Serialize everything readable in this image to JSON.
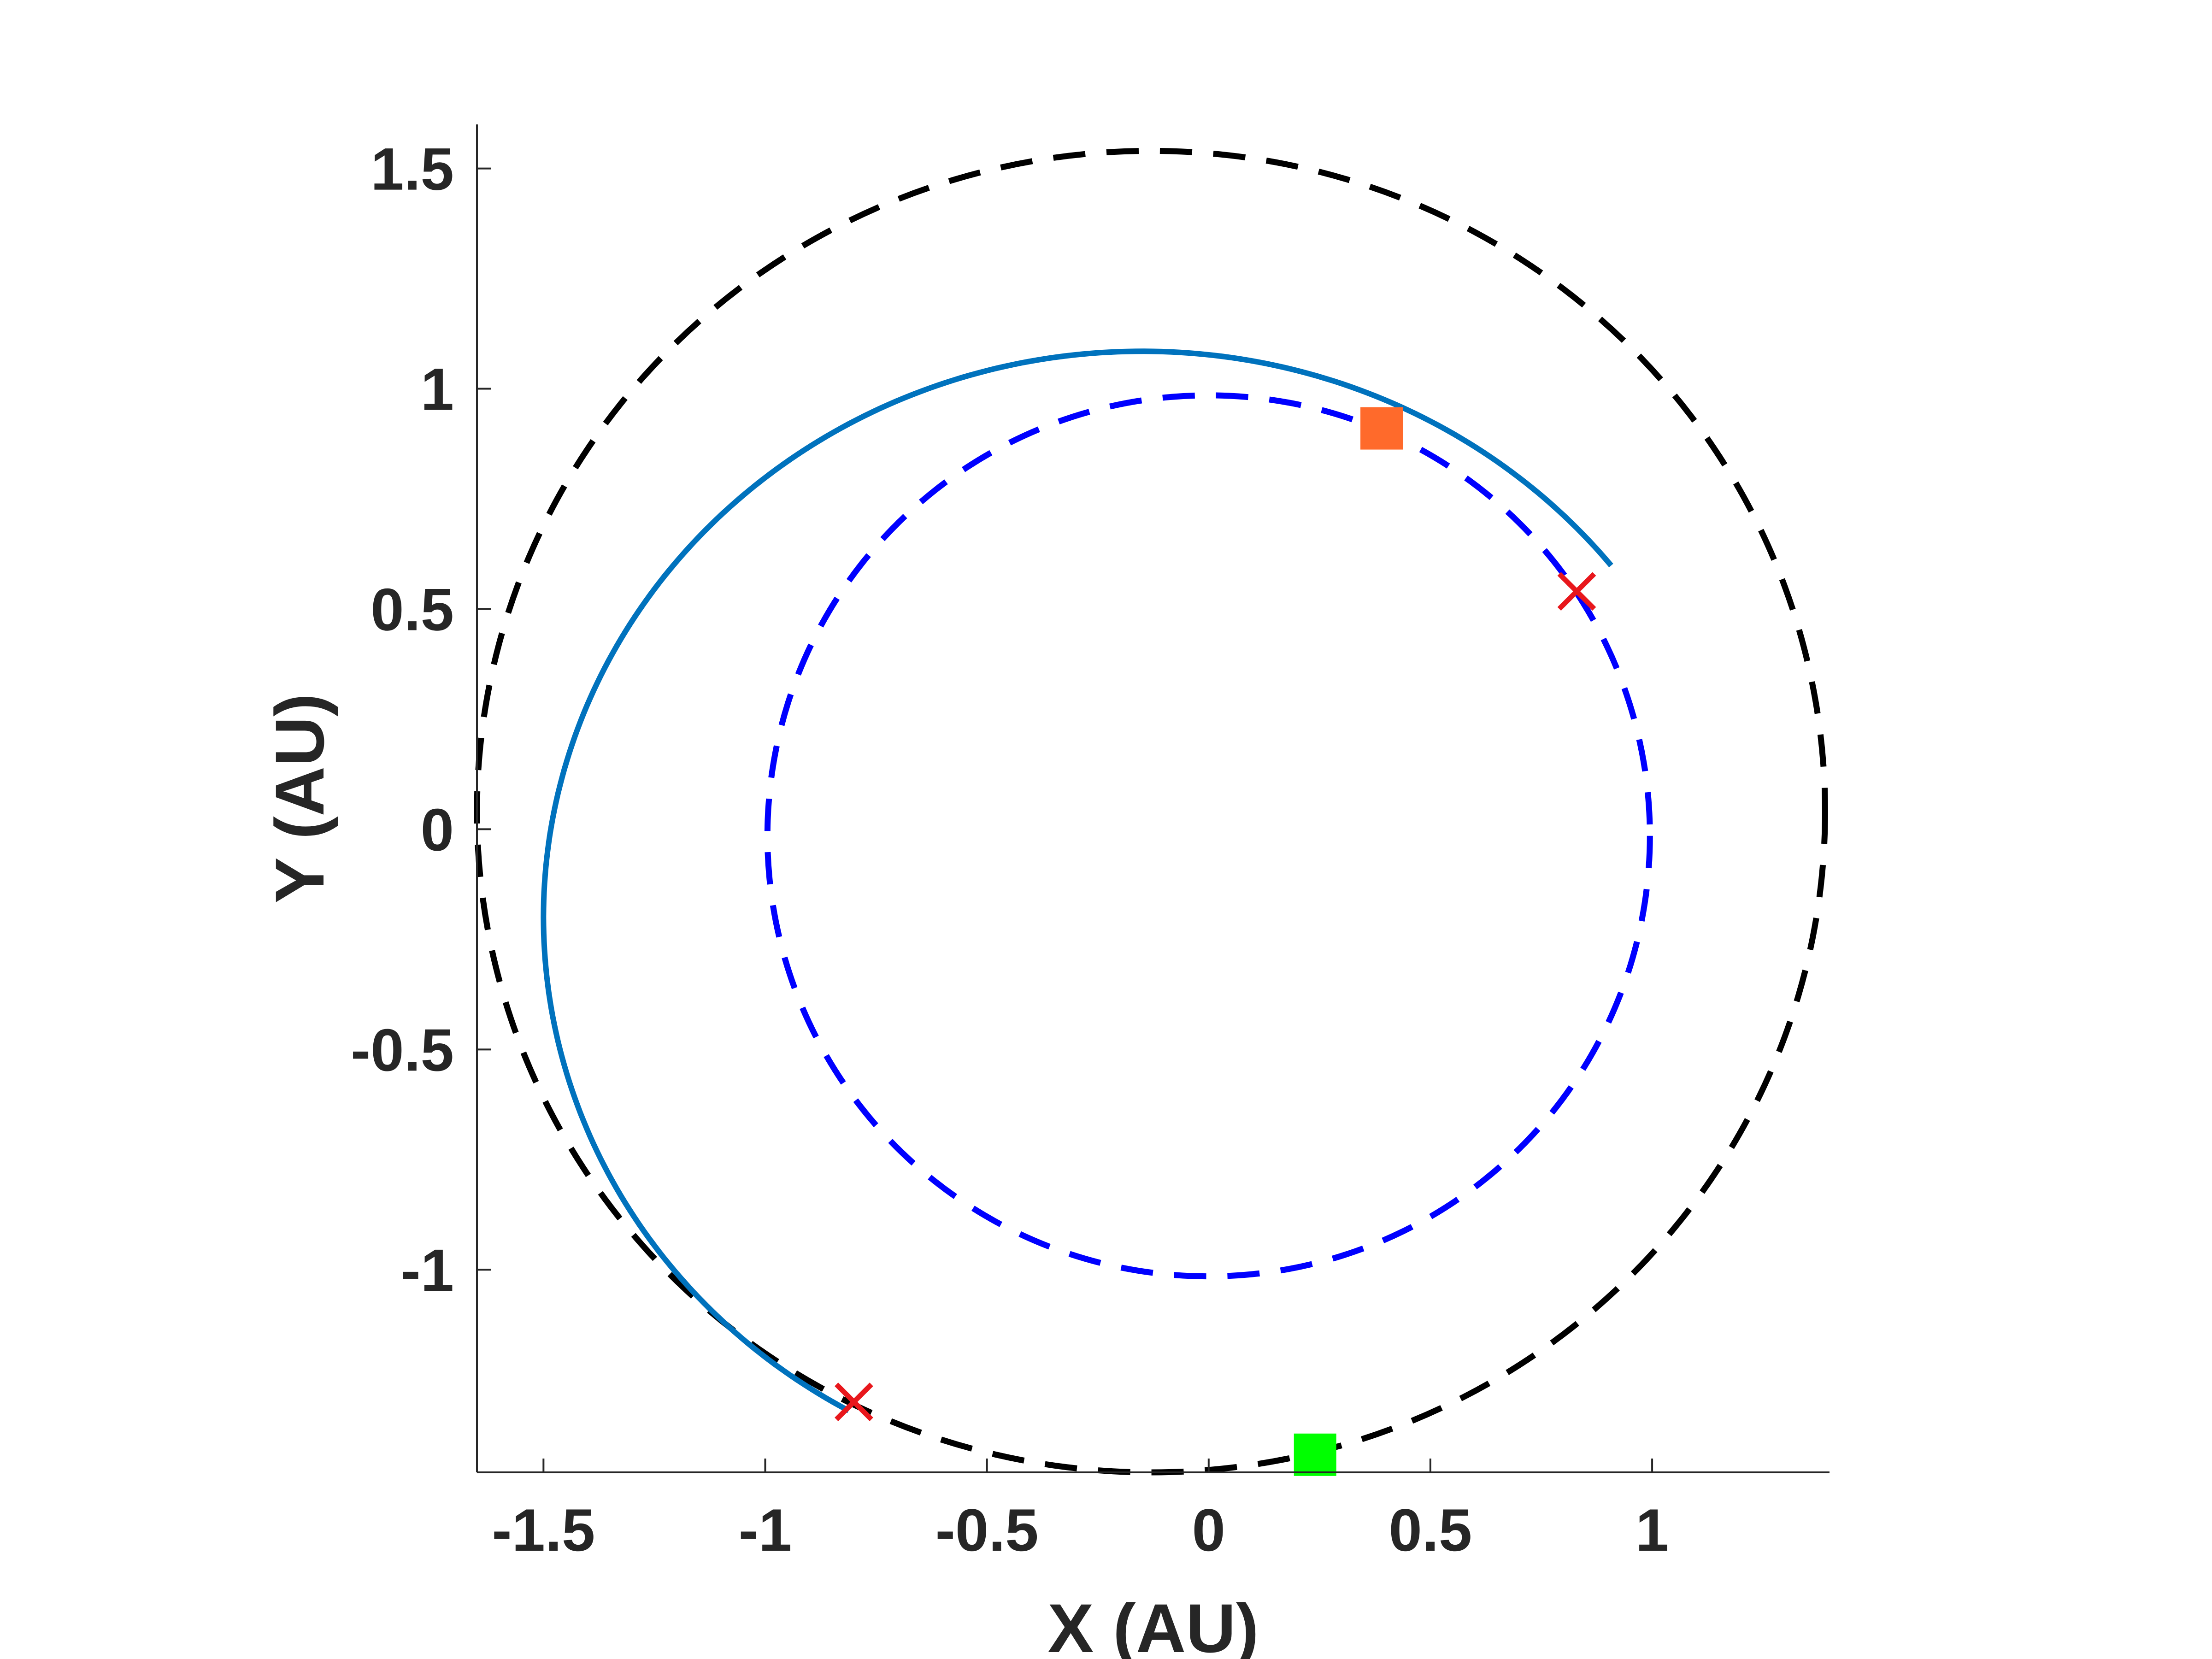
{
  "chart_data": {
    "type": "line",
    "title": "",
    "xlabel": "X (AU)",
    "ylabel": "Y (AU)",
    "xlim": [
      -1.65,
      1.4
    ],
    "ylim": [
      -1.46,
      1.6
    ],
    "xticks": [
      -1.5,
      -1,
      -0.5,
      0,
      0.5,
      1
    ],
    "xtick_labels": [
      "-1.5",
      "-1",
      "-0.5",
      "0",
      "0.5",
      "1"
    ],
    "yticks": [
      -1,
      -0.5,
      0,
      0.5,
      1,
      1.5
    ],
    "ytick_labels": [
      "-1",
      "-0.5",
      "0",
      "0.5",
      "1",
      "1.5"
    ],
    "grid": false,
    "legend": "none",
    "series": [
      {
        "kind": "ellipse-dashed",
        "color": "#0000ff",
        "center": [
          0.0,
          -0.015
        ],
        "semi_axes": [
          0.995,
          1.0
        ],
        "style": "dashed"
      },
      {
        "kind": "ellipse-dashed",
        "color": "#000000",
        "center": [
          -0.13,
          0.04
        ],
        "semi_axes": [
          1.52,
          1.5
        ],
        "style": "dashed"
      },
      {
        "kind": "arc-solid",
        "color": "#0072bd",
        "center": [
          -0.15,
          -0.2
        ],
        "semi_axes": [
          1.35,
          1.285
        ],
        "arc_from": [
          0.83,
          0.54
        ],
        "arc_to": [
          -0.8,
          -1.3
        ],
        "style": "solid"
      }
    ],
    "markers": [
      {
        "shape": "x",
        "color": "#e8171c",
        "x": 0.83,
        "y": 0.54
      },
      {
        "shape": "x",
        "color": "#e8171c",
        "x": -0.8,
        "y": -1.3
      },
      {
        "shape": "square",
        "color": "#ff6a2b",
        "x": 0.39,
        "y": 0.91
      },
      {
        "shape": "square",
        "color": "#00ff00",
        "x": 0.24,
        "y": -1.42
      }
    ]
  }
}
